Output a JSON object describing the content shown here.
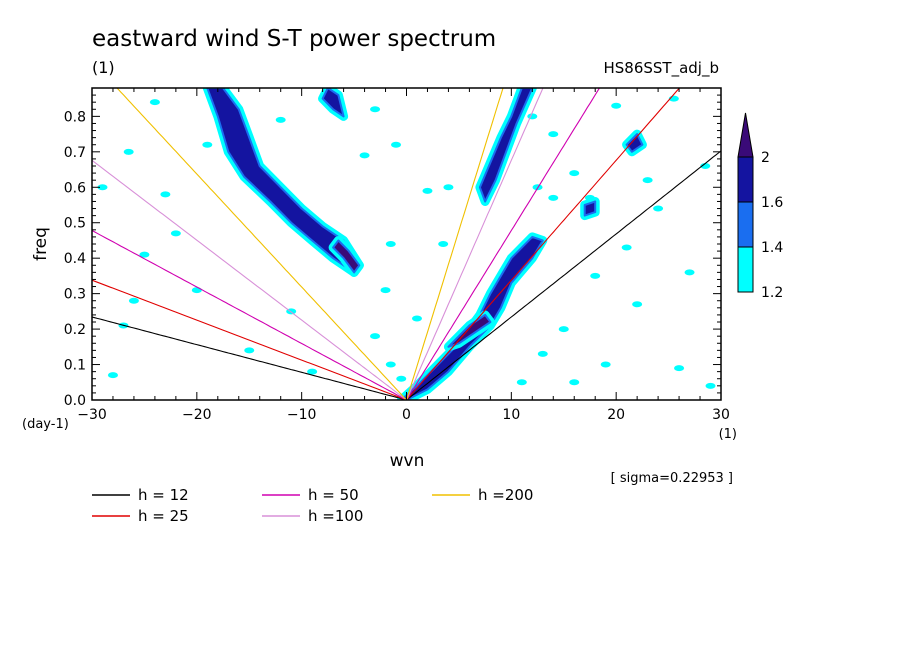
{
  "chart_data": {
    "type": "heatmap",
    "title": "eastward wind S-T power spectrum",
    "subtitle": "(1)",
    "run_label": "HS86SST_adj_b",
    "xlabel": "wvn",
    "ylabel": "freq",
    "xunit": "(1)",
    "yunit": "(day-1)",
    "sigma_note": "[ sigma=0.22953 ]",
    "xlim": [
      -30,
      30
    ],
    "ylim": [
      0,
      0.88
    ],
    "xticks": [
      -30,
      -20,
      -10,
      0,
      10,
      20,
      30
    ],
    "yticks": [
      0.0,
      0.1,
      0.2,
      0.3,
      0.4,
      0.5,
      0.6,
      0.7,
      0.8
    ],
    "colorbar": {
      "levels": [
        1.2,
        1.4,
        1.6,
        2
      ],
      "tick_labels": [
        "1.2",
        "1.4",
        "1.6",
        "2"
      ],
      "colors": [
        "#00ffff",
        "#1a6ef0",
        "#1414a0",
        "#3a0a78"
      ]
    },
    "dispersion_curves": [
      {
        "label": "h = 12",
        "h": 12,
        "color": "#000000"
      },
      {
        "label": "h = 25",
        "h": 25,
        "color": "#e00000"
      },
      {
        "label": "h = 50",
        "h": 50,
        "color": "#d000b0"
      },
      {
        "label": "h =100",
        "h": 100,
        "color": "#d890d8"
      },
      {
        "label": "h =200",
        "h": 200,
        "color": "#f0c000"
      }
    ],
    "shaded_regions": [
      {
        "level": 1.6,
        "path": [
          [
            -17.5,
            0.88
          ],
          [
            -16,
            0.82
          ],
          [
            -15,
            0.74
          ],
          [
            -14,
            0.66
          ],
          [
            -12,
            0.6
          ],
          [
            -10,
            0.54
          ],
          [
            -8,
            0.49
          ],
          [
            -6,
            0.45
          ],
          [
            -4.5,
            0.38
          ],
          [
            -5,
            0.36
          ],
          [
            -7,
            0.4
          ],
          [
            -9,
            0.45
          ],
          [
            -11,
            0.5
          ],
          [
            -13,
            0.56
          ],
          [
            -15.5,
            0.63
          ],
          [
            -17,
            0.7
          ],
          [
            -18,
            0.8
          ],
          [
            -19,
            0.88
          ]
        ]
      },
      {
        "level": 1.6,
        "path": [
          [
            0,
            0.0
          ],
          [
            2,
            0.03
          ],
          [
            4,
            0.08
          ],
          [
            6,
            0.15
          ],
          [
            8,
            0.21
          ],
          [
            9,
            0.26
          ],
          [
            10,
            0.33
          ],
          [
            12,
            0.4
          ],
          [
            13,
            0.45
          ],
          [
            12,
            0.46
          ],
          [
            10,
            0.4
          ],
          [
            8,
            0.3
          ],
          [
            7,
            0.24
          ],
          [
            5,
            0.16
          ],
          [
            3,
            0.1
          ],
          [
            1,
            0.04
          ],
          [
            -0.5,
            0.0
          ]
        ]
      },
      {
        "level": 1.6,
        "path": [
          [
            7,
            0.6
          ],
          [
            8,
            0.67
          ],
          [
            9,
            0.74
          ],
          [
            10,
            0.8
          ],
          [
            11,
            0.88
          ],
          [
            12,
            0.88
          ],
          [
            10.5,
            0.78
          ],
          [
            9.5,
            0.7
          ],
          [
            8.5,
            0.62
          ],
          [
            7.5,
            0.56
          ]
        ]
      },
      {
        "level": 2,
        "path": [
          [
            -7,
            0.43
          ],
          [
            -6,
            0.4
          ],
          [
            -5,
            0.36
          ],
          [
            -4.5,
            0.38
          ],
          [
            -5.5,
            0.42
          ],
          [
            -6.5,
            0.45
          ]
        ]
      },
      {
        "level": 2,
        "path": [
          [
            5,
            0.16
          ],
          [
            7,
            0.2
          ],
          [
            8,
            0.22
          ],
          [
            7.5,
            0.24
          ],
          [
            6,
            0.21
          ],
          [
            4,
            0.15
          ]
        ]
      },
      {
        "level": 1.6,
        "path": [
          [
            -8,
            0.85
          ],
          [
            -7,
            0.82
          ],
          [
            -6,
            0.8
          ],
          [
            -6.5,
            0.86
          ],
          [
            -7.5,
            0.88
          ]
        ]
      },
      {
        "level": 1.6,
        "path": [
          [
            17,
            0.55
          ],
          [
            18,
            0.56
          ],
          [
            18,
            0.53
          ],
          [
            17,
            0.52
          ]
        ]
      },
      {
        "level": 1.6,
        "path": [
          [
            21,
            0.72
          ],
          [
            22,
            0.75
          ],
          [
            22.5,
            0.72
          ],
          [
            21.5,
            0.7
          ]
        ]
      }
    ],
    "speckles": [
      [
        -28,
        0.07
      ],
      [
        -26,
        0.28
      ],
      [
        -25,
        0.41
      ],
      [
        -29,
        0.6
      ],
      [
        -26.5,
        0.7
      ],
      [
        -23,
        0.58
      ],
      [
        -20,
        0.31
      ],
      [
        -19,
        0.72
      ],
      [
        -24,
        0.84
      ],
      [
        -27,
        0.21
      ],
      [
        -22,
        0.47
      ],
      [
        -12,
        0.79
      ],
      [
        -3,
        0.82
      ],
      [
        -4,
        0.69
      ],
      [
        -1,
        0.72
      ],
      [
        2,
        0.59
      ],
      [
        4,
        0.6
      ],
      [
        3.5,
        0.44
      ],
      [
        -1.5,
        0.44
      ],
      [
        -2,
        0.31
      ],
      [
        1,
        0.23
      ],
      [
        -11,
        0.25
      ],
      [
        -15,
        0.14
      ],
      [
        -9,
        0.08
      ],
      [
        -1.5,
        0.1
      ],
      [
        -3,
        0.18
      ],
      [
        -0.5,
        0.06
      ],
      [
        14,
        0.57
      ],
      [
        16,
        0.64
      ],
      [
        24,
        0.54
      ],
      [
        27,
        0.36
      ],
      [
        29,
        0.04
      ],
      [
        26,
        0.09
      ],
      [
        15,
        0.2
      ],
      [
        18,
        0.35
      ],
      [
        21,
        0.43
      ],
      [
        22,
        0.27
      ],
      [
        19,
        0.1
      ],
      [
        12.5,
        0.6
      ],
      [
        14,
        0.75
      ],
      [
        20,
        0.83
      ],
      [
        23,
        0.62
      ],
      [
        28.5,
        0.66
      ],
      [
        25.5,
        0.85
      ],
      [
        16,
        0.05
      ],
      [
        11,
        0.05
      ],
      [
        13,
        0.13
      ],
      [
        17.5,
        0.57
      ],
      [
        12,
        0.8
      ]
    ]
  }
}
